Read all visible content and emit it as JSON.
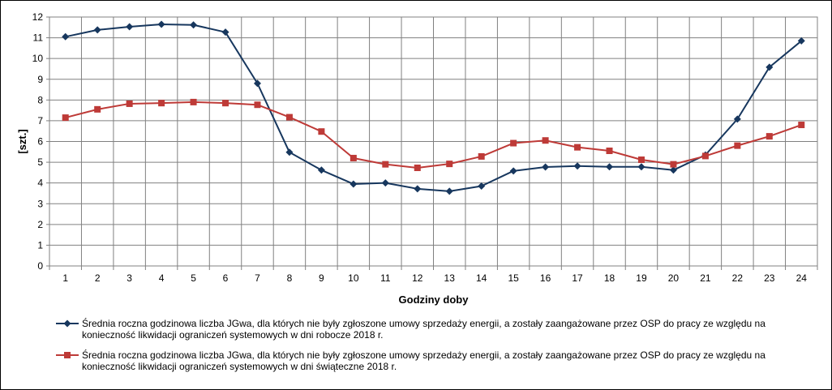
{
  "chart_data": {
    "type": "line",
    "xlabel": "Godziny doby",
    "ylabel": "[szt.]",
    "categories": [
      "1",
      "2",
      "3",
      "4",
      "5",
      "6",
      "7",
      "8",
      "9",
      "10",
      "11",
      "12",
      "13",
      "14",
      "15",
      "16",
      "17",
      "18",
      "19",
      "20",
      "21",
      "22",
      "23",
      "24"
    ],
    "ylim": [
      0,
      12
    ],
    "yticks": [
      "0",
      "1",
      "2",
      "3",
      "4",
      "5",
      "6",
      "7",
      "8",
      "9",
      "10",
      "11",
      "12"
    ],
    "grid": true,
    "legend_position": "bottom",
    "series": [
      {
        "legend_lines": [
          "Średnia roczna godzinowa liczba JGwa, dla których nie były zgłoszone umowy sprzedaży energii, a zostały zaangażowane przez OSP do pracy ze względu na",
          "konieczność likwidacji ograniczeń systemowych w dni robocze 2018 r."
        ],
        "color": "#17375e",
        "marker": "diamond",
        "values": [
          11.05,
          11.38,
          11.53,
          11.65,
          11.62,
          11.27,
          8.8,
          5.48,
          4.62,
          3.95,
          4.0,
          3.72,
          3.6,
          3.85,
          4.58,
          4.77,
          4.82,
          4.78,
          4.78,
          4.62,
          5.35,
          7.08,
          9.58,
          10.85
        ]
      },
      {
        "legend_lines": [
          "Średnia roczna godzinowa liczba JGwa, dla których nie były zgłoszone umowy sprzedaży energii, a zostały zaangażowane przez OSP do pracy ze względu na",
          "konieczność likwidacji ograniczeń systemowych w dni świąteczne 2018 r."
        ],
        "color": "#be3a37",
        "marker": "square",
        "values": [
          7.15,
          7.55,
          7.82,
          7.85,
          7.9,
          7.85,
          7.77,
          7.17,
          6.48,
          5.2,
          4.9,
          4.73,
          4.92,
          5.28,
          5.92,
          6.05,
          5.72,
          5.55,
          5.12,
          4.9,
          5.3,
          5.8,
          6.25,
          6.8
        ]
      }
    ]
  }
}
